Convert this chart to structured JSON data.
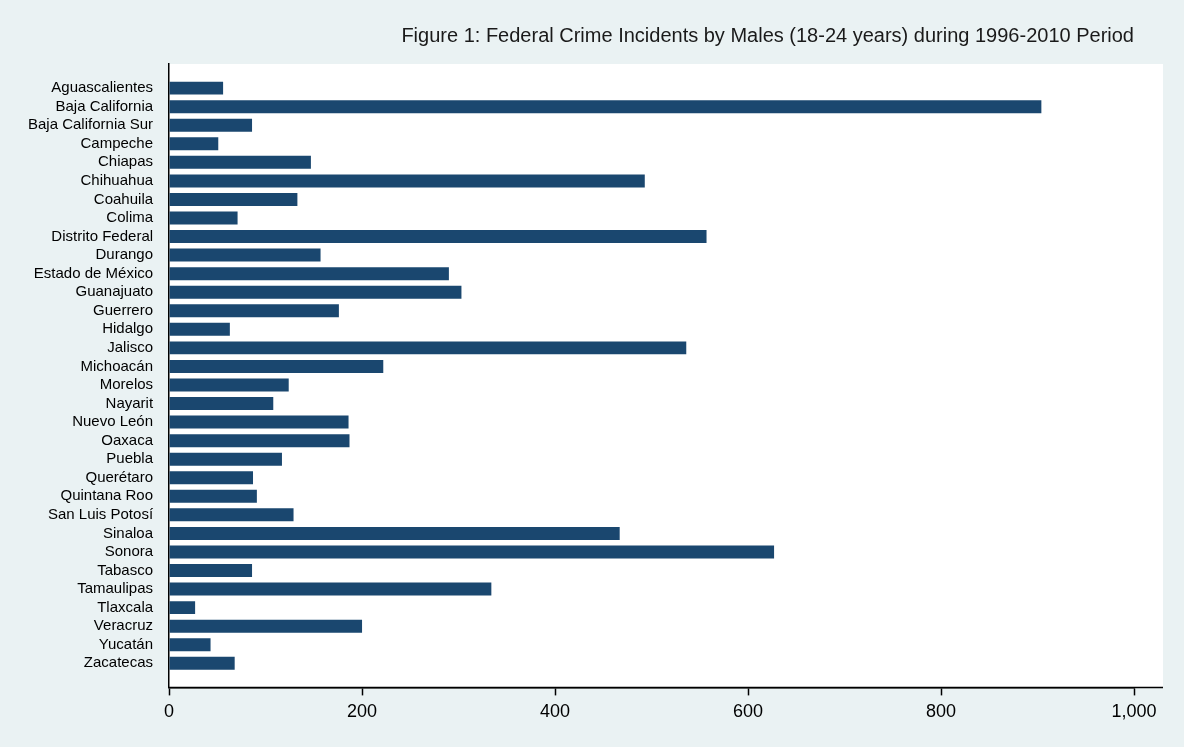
{
  "chart_data": {
    "type": "bar",
    "orientation": "horizontal",
    "title": "Figure 1: Federal Crime Incidents by Males (18-24 years) during 1996-2010 Period",
    "categories": [
      "Aguascalientes",
      "Baja California",
      "Baja California Sur",
      "Campeche",
      "Chiapas",
      "Chihuahua",
      "Coahuila",
      "Colima",
      "Distrito Federal",
      "Durango",
      "Estado de México",
      "Guanajuato",
      "Guerrero",
      "Hidalgo",
      "Jalisco",
      "Michoacán",
      "Morelos",
      "Nayarit",
      "Nuevo León",
      "Oaxaca",
      "Puebla",
      "Querétaro",
      "Quintana Roo",
      "San Luis Potosí",
      "Sinaloa",
      "Sonora",
      "Tabasco",
      "Tamaulipas",
      "Tlaxcala",
      "Veracruz",
      "Yucatán",
      "Zacatecas"
    ],
    "values": [
      56,
      904,
      86,
      51,
      147,
      493,
      133,
      71,
      557,
      157,
      290,
      303,
      176,
      63,
      536,
      222,
      124,
      108,
      186,
      187,
      117,
      87,
      91,
      129,
      467,
      627,
      86,
      334,
      27,
      200,
      43,
      68
    ],
    "color": "#1a476f",
    "xlim": [
      0,
      1000
    ],
    "xticks": [
      0,
      200,
      400,
      600,
      800,
      {
        "value": 1000,
        "label": "1,000"
      }
    ],
    "grid": false,
    "legend": false
  }
}
